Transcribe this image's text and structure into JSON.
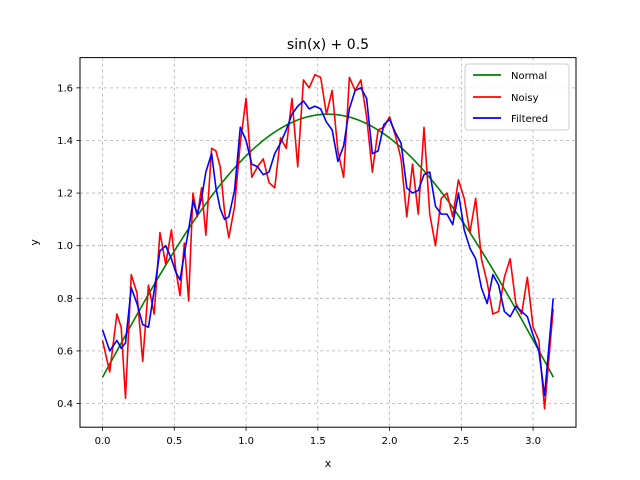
{
  "chart_data": {
    "type": "line",
    "title": "sin(x) + 0.5",
    "xlabel": "x",
    "ylabel": "y",
    "xlim": [
      -0.157,
      3.299
    ],
    "ylim": [
      0.31,
      1.715
    ],
    "xticks": [
      0.0,
      0.5,
      1.0,
      1.5,
      2.0,
      2.5,
      3.0
    ],
    "xtick_labels": [
      "0.0",
      "0.5",
      "1.0",
      "1.5",
      "2.0",
      "2.5",
      "3.0"
    ],
    "yticks": [
      0.4,
      0.6,
      0.8,
      1.0,
      1.2,
      1.4,
      1.6
    ],
    "ytick_labels": [
      "0.4",
      "0.6",
      "0.8",
      "1.0",
      "1.2",
      "1.4",
      "1.6"
    ],
    "grid": true,
    "legend_position": "top-right",
    "series": [
      {
        "name": "Normal",
        "color": "#008000",
        "function": "sin(x) + 0.5",
        "x_range": [
          0.0,
          3.1416
        ]
      },
      {
        "name": "Noisy",
        "color": "#ff0000",
        "x": [
          0.0,
          0.05,
          0.1,
          0.13,
          0.16,
          0.2,
          0.24,
          0.28,
          0.32,
          0.36,
          0.4,
          0.44,
          0.48,
          0.51,
          0.54,
          0.57,
          0.6,
          0.63,
          0.66,
          0.69,
          0.72,
          0.76,
          0.79,
          0.82,
          0.85,
          0.88,
          0.92,
          0.96,
          1.0,
          1.04,
          1.08,
          1.12,
          1.16,
          1.2,
          1.24,
          1.28,
          1.32,
          1.36,
          1.4,
          1.44,
          1.48,
          1.52,
          1.56,
          1.6,
          1.64,
          1.68,
          1.72,
          1.76,
          1.8,
          1.84,
          1.88,
          1.92,
          1.96,
          2.0,
          2.04,
          2.08,
          2.12,
          2.16,
          2.2,
          2.24,
          2.28,
          2.32,
          2.36,
          2.4,
          2.44,
          2.48,
          2.52,
          2.56,
          2.6,
          2.64,
          2.68,
          2.72,
          2.76,
          2.8,
          2.84,
          2.88,
          2.92,
          2.96,
          3.0,
          3.04,
          3.08,
          3.14
        ],
        "values": [
          0.64,
          0.52,
          0.74,
          0.69,
          0.42,
          0.89,
          0.82,
          0.56,
          0.85,
          0.74,
          1.05,
          0.93,
          1.06,
          0.91,
          0.81,
          1.01,
          0.79,
          1.2,
          1.11,
          1.22,
          1.04,
          1.37,
          1.36,
          1.3,
          1.13,
          1.03,
          1.15,
          1.39,
          1.56,
          1.26,
          1.3,
          1.33,
          1.24,
          1.22,
          1.41,
          1.37,
          1.56,
          1.3,
          1.63,
          1.6,
          1.65,
          1.64,
          1.5,
          1.59,
          1.36,
          1.26,
          1.64,
          1.59,
          1.63,
          1.49,
          1.28,
          1.44,
          1.45,
          1.49,
          1.42,
          1.33,
          1.11,
          1.31,
          1.12,
          1.45,
          1.12,
          1.0,
          1.18,
          1.2,
          1.11,
          1.25,
          1.18,
          1.05,
          1.18,
          0.95,
          0.86,
          0.74,
          0.75,
          0.88,
          0.95,
          0.78,
          0.74,
          0.88,
          0.69,
          0.64,
          0.38,
          0.76
        ],
        "values_note": ""
      },
      {
        "name": "Filtered",
        "color": "#0000ff",
        "x": [
          0.0,
          0.05,
          0.1,
          0.13,
          0.16,
          0.2,
          0.24,
          0.28,
          0.32,
          0.36,
          0.4,
          0.44,
          0.48,
          0.51,
          0.54,
          0.57,
          0.6,
          0.63,
          0.66,
          0.69,
          0.72,
          0.76,
          0.79,
          0.82,
          0.85,
          0.88,
          0.92,
          0.96,
          1.0,
          1.04,
          1.08,
          1.12,
          1.16,
          1.2,
          1.24,
          1.28,
          1.32,
          1.36,
          1.4,
          1.44,
          1.48,
          1.52,
          1.56,
          1.6,
          1.64,
          1.68,
          1.72,
          1.76,
          1.8,
          1.84,
          1.88,
          1.92,
          1.96,
          2.0,
          2.04,
          2.08,
          2.12,
          2.16,
          2.2,
          2.24,
          2.28,
          2.32,
          2.36,
          2.4,
          2.44,
          2.48,
          2.52,
          2.56,
          2.6,
          2.64,
          2.68,
          2.72,
          2.76,
          2.8,
          2.84,
          2.88,
          2.92,
          2.96,
          3.0,
          3.04,
          3.08,
          3.14
        ],
        "values": [
          0.68,
          0.6,
          0.64,
          0.61,
          0.63,
          0.84,
          0.78,
          0.7,
          0.69,
          0.83,
          0.98,
          1.0,
          0.95,
          0.9,
          0.87,
          0.97,
          1.06,
          1.17,
          1.12,
          1.18,
          1.28,
          1.35,
          1.22,
          1.14,
          1.1,
          1.11,
          1.21,
          1.45,
          1.4,
          1.31,
          1.3,
          1.27,
          1.28,
          1.35,
          1.39,
          1.44,
          1.5,
          1.53,
          1.55,
          1.52,
          1.53,
          1.52,
          1.47,
          1.44,
          1.32,
          1.38,
          1.52,
          1.59,
          1.6,
          1.56,
          1.35,
          1.36,
          1.46,
          1.48,
          1.43,
          1.39,
          1.22,
          1.2,
          1.21,
          1.27,
          1.28,
          1.15,
          1.12,
          1.12,
          1.08,
          1.2,
          1.06,
          0.99,
          0.95,
          0.84,
          0.78,
          0.89,
          0.85,
          0.75,
          0.73,
          0.77,
          0.75,
          0.73,
          0.66,
          0.6,
          0.43,
          0.8
        ]
      }
    ]
  }
}
